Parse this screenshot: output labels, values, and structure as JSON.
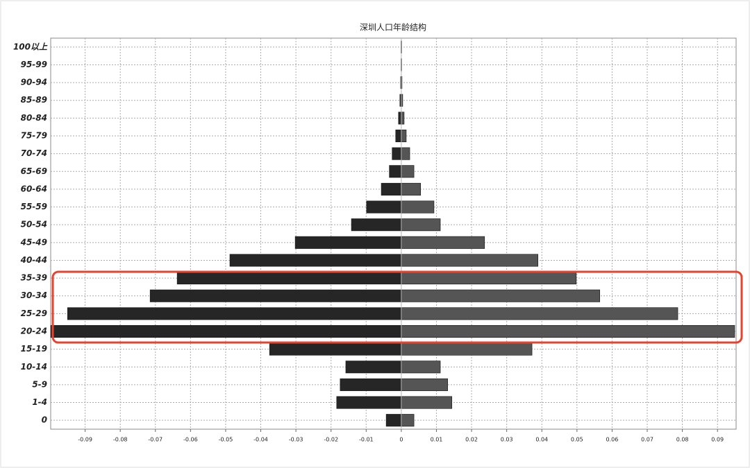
{
  "chart_data": {
    "type": "bar",
    "orientation": "horizontal",
    "title": "深圳人口年龄结构",
    "categories": [
      "0",
      "1-4",
      "5-9",
      "10-14",
      "15-19",
      "20-24",
      "25-29",
      "30-34",
      "35-39",
      "40-44",
      "45-49",
      "50-54",
      "55-59",
      "60-64",
      "65-69",
      "70-74",
      "75-79",
      "80-84",
      "85-89",
      "90-94",
      "95-99",
      "100以上"
    ],
    "series": [
      {
        "color": "#262626",
        "values": [
          -0.0043,
          -0.0184,
          -0.0174,
          -0.0158,
          -0.0375,
          -0.0998,
          -0.095,
          -0.0715,
          -0.0638,
          -0.0488,
          -0.0302,
          -0.0142,
          -0.0099,
          -0.0057,
          -0.0034,
          -0.0026,
          -0.0016,
          -0.0008,
          -0.0004,
          -0.0002,
          -0.0001,
          -0.0001
        ]
      },
      {
        "color": "#555555",
        "values": [
          0.0036,
          0.0144,
          0.0132,
          0.0111,
          0.0372,
          0.0949,
          0.0787,
          0.0565,
          0.0498,
          0.0389,
          0.0237,
          0.0111,
          0.0093,
          0.0055,
          0.0036,
          0.0024,
          0.0014,
          0.0008,
          0.0004,
          0.0002,
          0.0001,
          0.0001
        ]
      }
    ],
    "xlim": [
      -0.0998,
      0.0953
    ],
    "xticks": [
      -0.09,
      -0.08,
      -0.07,
      -0.06,
      -0.05,
      -0.04,
      -0.03,
      -0.02,
      -0.01,
      0,
      0.01,
      0.02,
      0.03,
      0.04,
      0.05,
      0.06,
      0.07,
      0.08,
      0.09
    ],
    "grid": true
  }
}
